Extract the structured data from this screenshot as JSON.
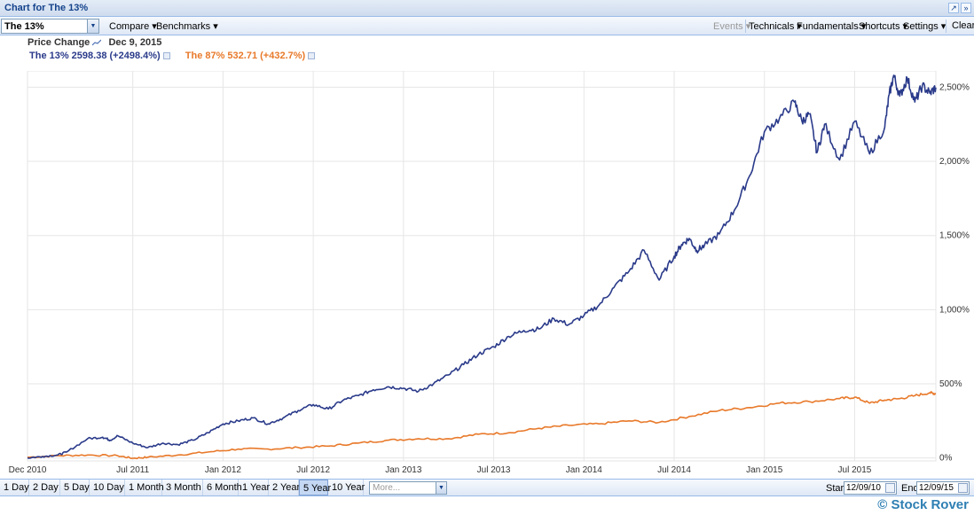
{
  "window": {
    "title": "Chart for The 13%",
    "restore_glyph": "↗",
    "collapse_glyph": "»"
  },
  "toolbar": {
    "symbol_value": "The 13%",
    "compare_label": "Compare",
    "benchmarks_label": "Benchmarks",
    "events_label": "Events",
    "technicals_label": "Technicals",
    "fundamentals_label": "Fundamentals",
    "shortcuts_label": "Shortcuts",
    "settings_label": "Settings",
    "clear_label": "Clear"
  },
  "info": {
    "mode_label": "Price Change",
    "date": "Dec 9, 2015",
    "series1_text": "The 13% 2598.38 (+2498.4%)",
    "series2_text": "The 87% 532.71 (+432.7%)"
  },
  "chart_data": {
    "type": "line",
    "title": "",
    "xlabel": "",
    "ylabel": "",
    "x_ticks": [
      "Dec 2010",
      "Jul 2011",
      "Jan 2012",
      "Jul 2012",
      "Jan 2013",
      "Jul 2013",
      "Jan 2014",
      "Jul 2014",
      "Jan 2015",
      "Jul 2015"
    ],
    "y_ticks": [
      "0%",
      "500%",
      "1,000%",
      "1,500%",
      "2,000%",
      "2,500%"
    ],
    "y_tick_values": [
      0,
      500,
      1000,
      1500,
      2000,
      2500
    ],
    "ylim": [
      -20,
      2610
    ],
    "xlim": [
      0,
      60.4
    ],
    "grid": true,
    "series": [
      {
        "name": "The 13%",
        "color": "#2a3a8a",
        "x": [
          0,
          1,
          2,
          2.6,
          4,
          5,
          5.5,
          6,
          7,
          8,
          9,
          10,
          11,
          12,
          13,
          14,
          15,
          16,
          17,
          18,
          19,
          20,
          21,
          22,
          23,
          24,
          25,
          26,
          27,
          28,
          29,
          30,
          31,
          32,
          33,
          34,
          35,
          36,
          37,
          38,
          39,
          40,
          41,
          42,
          43,
          43.5,
          44,
          44.5,
          45,
          46,
          47,
          48,
          49,
          50,
          51,
          51.5,
          52,
          52.5,
          53,
          54,
          55,
          56,
          57,
          57.3,
          57.6,
          58,
          58.5,
          59,
          59.5,
          60,
          60.4
        ],
        "values": [
          0,
          10,
          20,
          40,
          130,
          140,
          120,
          150,
          100,
          70,
          100,
          90,
          120,
          170,
          230,
          250,
          270,
          230,
          270,
          320,
          360,
          330,
          390,
          420,
          460,
          480,
          470,
          450,
          500,
          560,
          630,
          700,
          750,
          820,
          860,
          870,
          940,
          900,
          960,
          1030,
          1150,
          1260,
          1400,
          1200,
          1360,
          1440,
          1480,
          1400,
          1430,
          1510,
          1670,
          1900,
          2200,
          2290,
          2400,
          2270,
          2320,
          2060,
          2250,
          2010,
          2270,
          2050,
          2230,
          2450,
          2580,
          2440,
          2560,
          2400,
          2510,
          2460,
          2498
        ]
      },
      {
        "name": "The 87%",
        "color": "#e8792a",
        "x": [
          0,
          2,
          4,
          6,
          7,
          8,
          10,
          12,
          14,
          16,
          18,
          20,
          22,
          24,
          26,
          28,
          30,
          32,
          34,
          36,
          38,
          40,
          42,
          44,
          46,
          48,
          50,
          52,
          54,
          55,
          56,
          57,
          58,
          59,
          60,
          60.4
        ],
        "values": [
          5,
          15,
          20,
          15,
          -2,
          5,
          20,
          40,
          60,
          60,
          70,
          80,
          100,
          120,
          130,
          130,
          160,
          170,
          200,
          220,
          230,
          250,
          240,
          280,
          320,
          340,
          370,
          380,
          400,
          410,
          370,
          390,
          400,
          420,
          440,
          433
        ]
      }
    ]
  },
  "range_buttons": [
    "1 Day",
    "2 Day",
    "5 Day",
    "10 Day",
    "1 Month",
    "3 Month",
    "6 Month",
    "1 Year",
    "2 Year",
    "5 Year",
    "10 Year"
  ],
  "range_active": "5 Year",
  "more_placeholder": "More...",
  "start_label": "Start",
  "start_date": "12/09/10",
  "end_label": "End",
  "end_date": "12/09/15",
  "watermark": "© Stock Rover"
}
